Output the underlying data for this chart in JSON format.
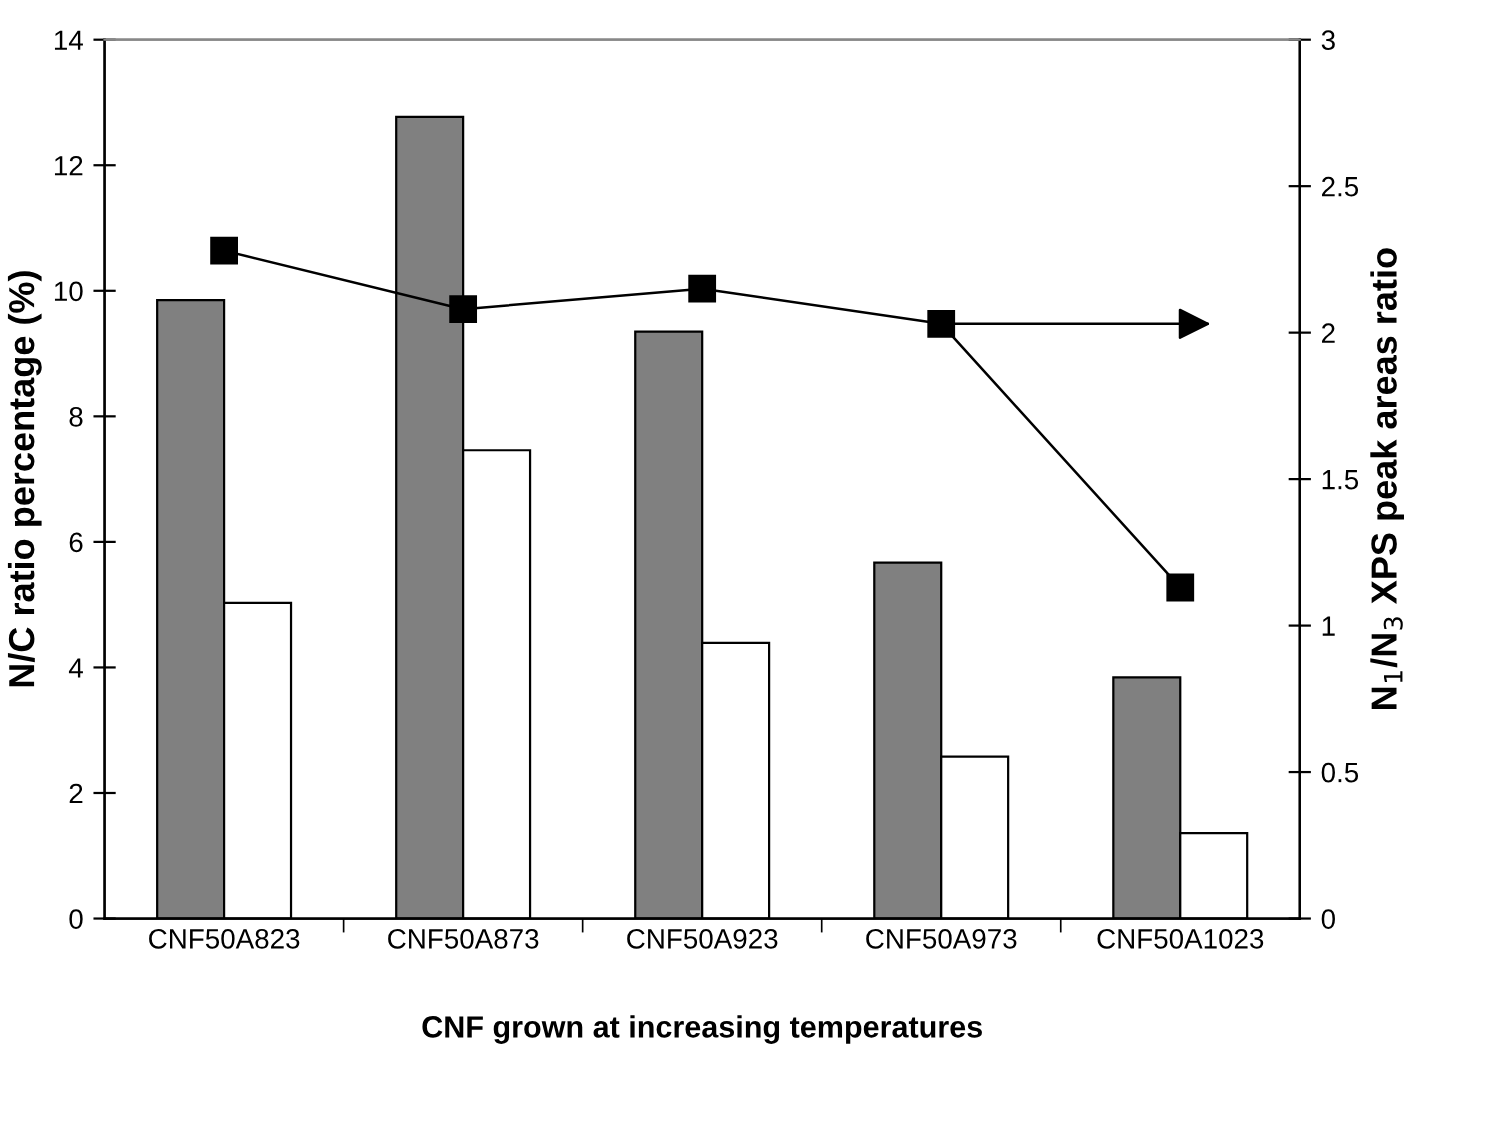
{
  "chart_data": {
    "type": "bar",
    "xlabel": "CNF grown at increasing temperatures",
    "ylabel": "N/C ratio percentage (%)",
    "y2label": "N$_{1}$/N$_{3}$ XPS peak areas ratio",
    "categories": [
      "CNF50A823",
      "CNF50A873",
      "CNF50A923",
      "CNF50A973",
      "CNF50A1023"
    ],
    "series": [
      {
        "color": "#808080",
        "values": [
          9.85,
          12.77,
          9.35,
          5.67,
          3.84
        ]
      },
      {
        "color": "#ffffff",
        "values": [
          5.03,
          7.46,
          4.39,
          2.58,
          1.36
        ]
      },
      {
        "type": "line",
        "axis": "y2",
        "color": "#000000",
        "marker": "square",
        "values": [
          2.28,
          2.08,
          2.15,
          2.03,
          1.13
        ]
      }
    ],
    "ylim": [
      0,
      14
    ],
    "yticks": [
      0,
      2,
      4,
      6,
      8,
      10,
      12,
      14
    ],
    "y2lim": [
      0,
      3
    ],
    "y2ticks": [
      0,
      0.5,
      1,
      1.5,
      2,
      2.5,
      3
    ],
    "grid": false,
    "legend": false
  }
}
